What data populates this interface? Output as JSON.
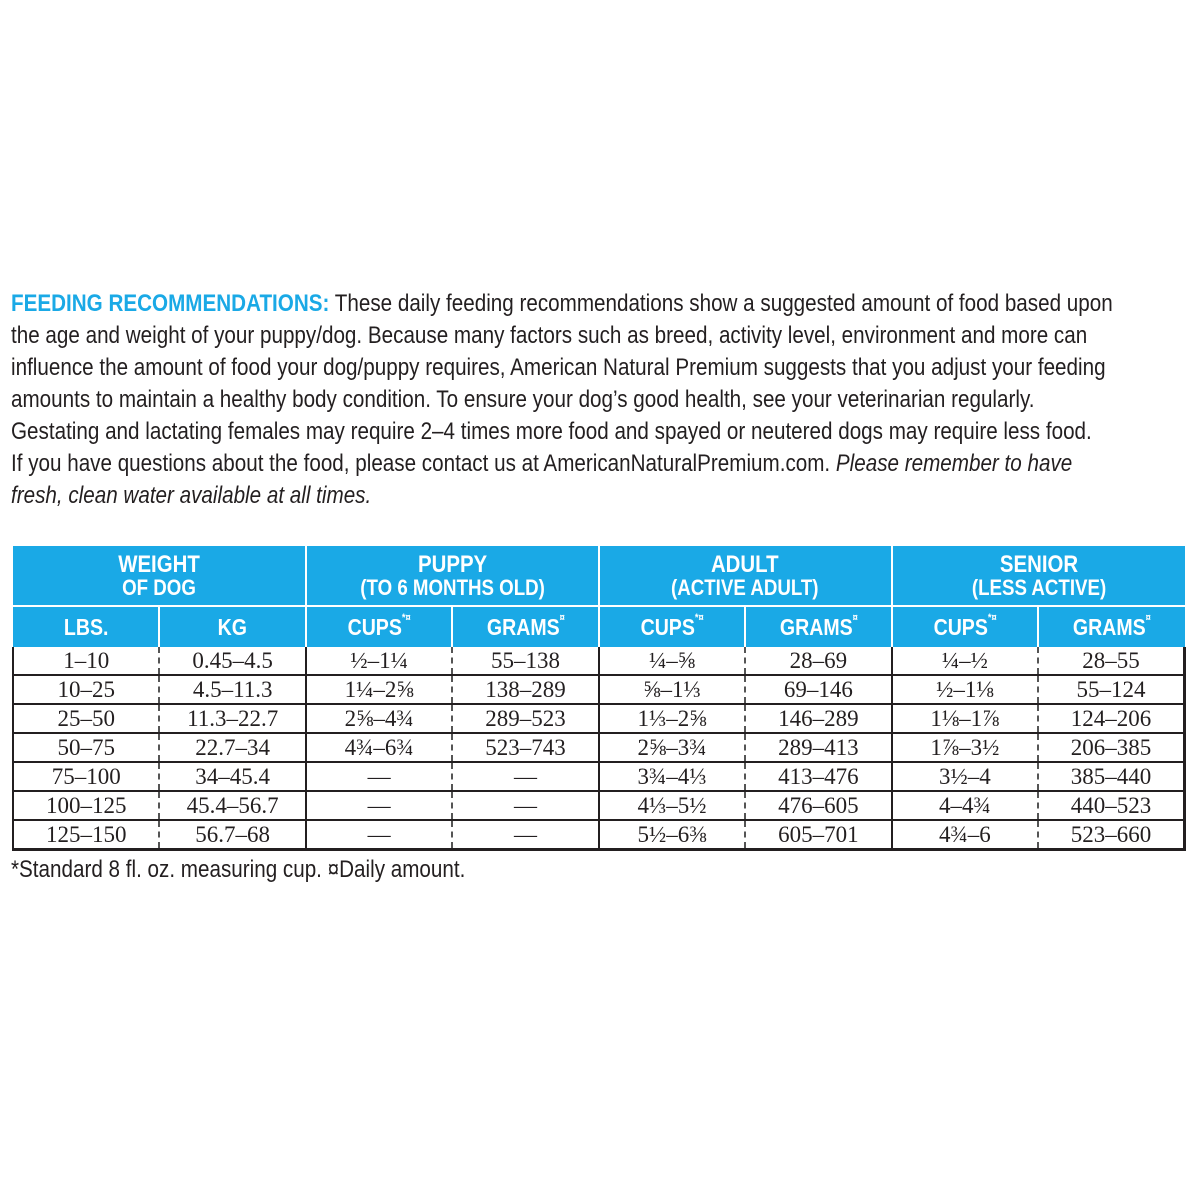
{
  "intro": {
    "lead": "FEEDING RECOMMENDATIONS:",
    "lines": [
      " These daily feeding recommendations show a suggested amount of food based upon",
      "the age and weight of your puppy/dog. Because many factors such as breed, activity level, environment and more can",
      "influence the amount of food your dog/puppy requires, American Natural Premium suggests that you adjust your feeding",
      "amounts to maintain a healthy body condition. To ensure your dog’s good health, see your veterinarian regularly.",
      "Gestating and lactating females may require 2–4 times more food and spayed or neutered dogs may require less food.",
      "If you have questions about the food, please contact us at AmericanNaturalPremium.com. "
    ],
    "italic_1": "Please remember to have",
    "italic_2": "fresh, clean water available at all times."
  },
  "colors": {
    "header_bg": "#1aa9e6",
    "text": "#231f20"
  },
  "table": {
    "groups": [
      {
        "title": "WEIGHT",
        "sub": "OF DOG"
      },
      {
        "title": "PUPPY",
        "sub": "(TO 6 MONTHS OLD)"
      },
      {
        "title": "ADULT",
        "sub": "(ACTIVE ADULT)"
      },
      {
        "title": "SENIOR",
        "sub": "(LESS ACTIVE)"
      }
    ],
    "columns": [
      "LBS.",
      "KG",
      "CUPS",
      "GRAMS",
      "CUPS",
      "GRAMS",
      "CUPS",
      "GRAMS"
    ],
    "cups_mark": "*¤",
    "grams_mark": "¤",
    "rows": [
      [
        "1–10",
        "0.45–4.5",
        "½–1¼",
        "55–138",
        "¼–⅝",
        "28–69",
        "¼–½",
        "28–55"
      ],
      [
        "10–25",
        "4.5–11.3",
        "1¼–2⅝",
        "138–289",
        "⅝–1⅓",
        "69–146",
        "½–1⅛",
        "55–124"
      ],
      [
        "25–50",
        "11.3–22.7",
        "2⅝–4¾",
        "289–523",
        "1⅓–2⅝",
        "146–289",
        "1⅛–1⅞",
        "124–206"
      ],
      [
        "50–75",
        "22.7–34",
        "4¾–6¾",
        "523–743",
        "2⅝–3¾",
        "289–413",
        "1⅞–3½",
        "206–385"
      ],
      [
        "75–100",
        "34–45.4",
        "—",
        "—",
        "3¾–4⅓",
        "413–476",
        "3½–4",
        "385–440"
      ],
      [
        "100–125",
        "45.4–56.7",
        "—",
        "—",
        "4⅓–5½",
        "476–605",
        "4–4¾",
        "440–523"
      ],
      [
        "125–150",
        "56.7–68",
        "—",
        "—",
        "5½–6⅜",
        "605–701",
        "4¾–6",
        "523–660"
      ]
    ]
  },
  "footnote": "*Standard 8 fl. oz. measuring cup.   ¤Daily amount."
}
